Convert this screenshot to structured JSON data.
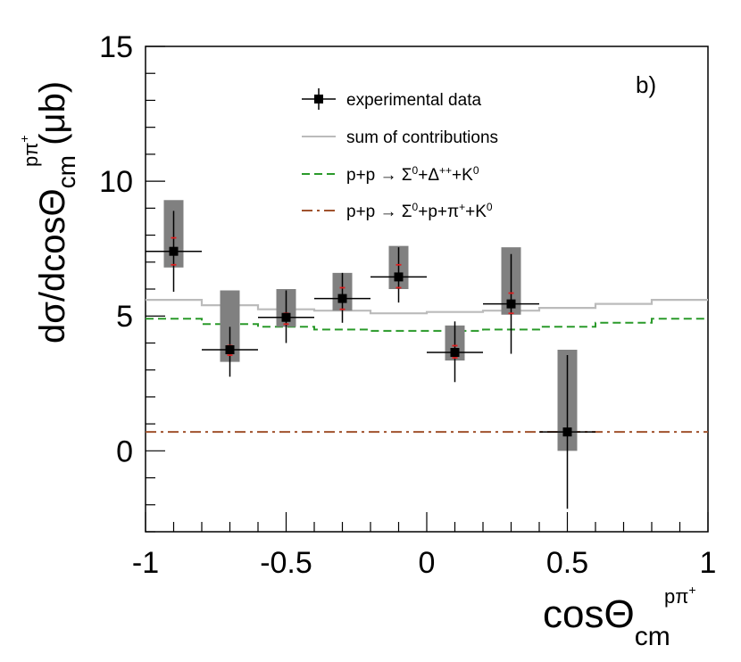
{
  "chart_data": {
    "type": "scatter",
    "panel_label": "b)",
    "xlabel": {
      "base": "cosΘ",
      "sub": "cm",
      "sup": "pπ",
      "supsup": "+"
    },
    "ylabel": {
      "base": "dσ/dcosΘ",
      "sub": "cm",
      "sup": "pπ",
      "supsup": "+",
      "unit": "(μb)"
    },
    "xlim": [
      -1,
      1
    ],
    "ylim": [
      -3,
      15
    ],
    "x_ticks": [
      -1,
      -0.5,
      0,
      0.5,
      1
    ],
    "x_tick_labels": [
      "-1",
      "-0.5",
      "0",
      "0.5",
      "1"
    ],
    "y_ticks": [
      0,
      5,
      10,
      15
    ],
    "y_tick_labels": [
      "0",
      "5",
      "10",
      "15"
    ],
    "series": [
      {
        "name": "experimental data",
        "style": "markers",
        "color": "#000000",
        "x": [
          -0.9,
          -0.7,
          -0.5,
          -0.3,
          -0.1,
          0.1,
          0.3,
          0.5
        ],
        "x_halfwidth": 0.1,
        "y": [
          7.4,
          3.75,
          4.95,
          5.65,
          6.45,
          3.65,
          5.45,
          0.7
        ],
        "y_stat_low": [
          5.9,
          2.75,
          4.0,
          4.75,
          5.5,
          2.55,
          3.6,
          -2.15
        ],
        "y_stat_high": [
          8.9,
          4.6,
          5.95,
          6.6,
          7.55,
          4.8,
          7.3,
          3.55
        ],
        "sys_box_low": [
          6.8,
          3.3,
          4.6,
          5.2,
          6.0,
          3.35,
          5.05,
          0.0
        ],
        "sys_box_high": [
          9.3,
          5.95,
          6.0,
          6.6,
          7.6,
          4.65,
          7.55,
          3.75
        ],
        "red_marks": [
          [
            6.9,
            7.9
          ],
          [
            3.55,
            3.9
          ],
          [
            4.7,
            5.1
          ],
          [
            5.25,
            6.05
          ],
          [
            6.05,
            6.9
          ],
          [
            3.45,
            3.9
          ],
          [
            5.1,
            5.85
          ],
          [
            0.6,
            0.8
          ]
        ]
      },
      {
        "name": "sum of contributions",
        "style": "step",
        "color": "#bbbbbb",
        "bin_edges": [
          -1,
          -0.8,
          -0.6,
          -0.4,
          -0.2,
          0,
          0.2,
          0.4,
          0.6,
          0.8,
          1
        ],
        "values": [
          5.6,
          5.4,
          5.25,
          5.2,
          5.1,
          5.15,
          5.2,
          5.3,
          5.45,
          5.6
        ]
      },
      {
        "name": "p+p → Σ⁰+Δ⁺⁺+K⁰",
        "style": "dashed-step",
        "color": "#2a9a2a",
        "bin_edges": [
          -1,
          -0.8,
          -0.6,
          -0.4,
          -0.2,
          0,
          0.2,
          0.4,
          0.6,
          0.8,
          1
        ],
        "values": [
          4.9,
          4.7,
          4.6,
          4.5,
          4.45,
          4.45,
          4.5,
          4.6,
          4.75,
          4.9
        ]
      },
      {
        "name": "p+p → Σ⁰+p+π⁺+K⁰",
        "style": "dashdot",
        "color": "#a0522d",
        "bin_edges": [
          -1,
          1
        ],
        "values": [
          0.7
        ]
      }
    ],
    "legend": {
      "position": "top-center",
      "entries": [
        {
          "label": "experimental data",
          "sup": "",
          "html_parts": [
            [
              "experimental data",
              ""
            ]
          ]
        },
        {
          "label": "sum of contributions",
          "html_parts": [
            [
              "sum of contributions",
              ""
            ]
          ]
        },
        {
          "label": "p+p → Σ0+Δ++K0",
          "html_parts": [
            [
              "p+p → Σ",
              ""
            ],
            [
              "0",
              "sup"
            ],
            [
              "+Δ",
              ""
            ],
            [
              "++",
              "sup"
            ],
            [
              "+K",
              ""
            ],
            [
              "0",
              "sup"
            ]
          ]
        },
        {
          "label": "p+p → Σ0+p+π++K0",
          "html_parts": [
            [
              "p+p → Σ",
              ""
            ],
            [
              "0",
              "sup"
            ],
            [
              "+p+π",
              ""
            ],
            [
              "+",
              "sup"
            ],
            [
              "+K",
              ""
            ],
            [
              "0",
              "sup"
            ]
          ]
        }
      ]
    }
  }
}
